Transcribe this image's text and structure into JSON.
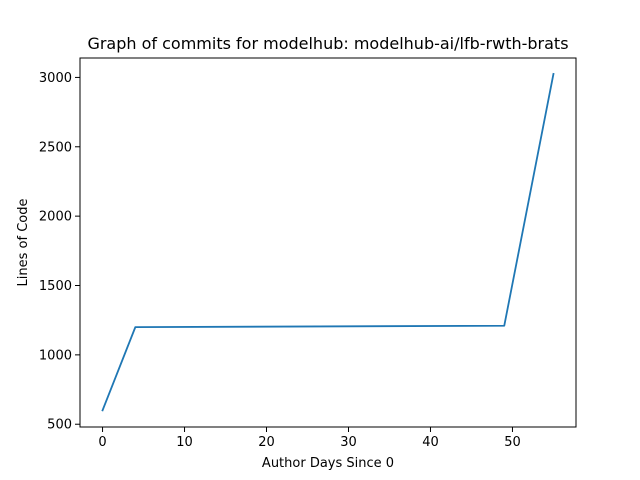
{
  "chart_data": {
    "type": "line",
    "title": "Graph of commits for modelhub: modelhub-ai/lfb-rwth-brats",
    "xlabel": "Author Days Since 0",
    "ylabel": "Lines of Code",
    "xlim": [
      -2.75,
      57.75
    ],
    "ylim": [
      480,
      3140
    ],
    "xticks": [
      0,
      10,
      20,
      30,
      40,
      50
    ],
    "yticks": [
      500,
      1000,
      1500,
      2000,
      2500,
      3000
    ],
    "grid": false,
    "series": [
      {
        "color": "#1f77b4",
        "x": [
          0,
          4,
          49,
          55
        ],
        "y": [
          600,
          1200,
          1210,
          3025
        ]
      }
    ]
  }
}
